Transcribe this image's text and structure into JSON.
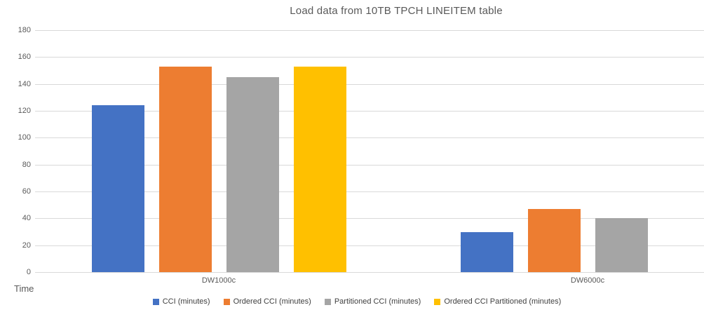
{
  "title": "Load data from 10TB TPCH LINEITEM table",
  "axis_title": "Time",
  "colors": {
    "background": "#ffffff",
    "gridline": "#d9d9d9",
    "axis_label_text": "#595959",
    "title_text": "#595959",
    "legend_text": "#404040"
  },
  "chart_data": {
    "type": "bar",
    "title": "Load data from 10TB TPCH LINEITEM table",
    "xlabel": "Time",
    "ylabel": "",
    "categories": [
      "DW1000c",
      "DW6000c"
    ],
    "series": [
      {
        "name": "CCI (minutes)",
        "color": "#4472C4",
        "values": [
          124,
          30
        ]
      },
      {
        "name": "Ordered CCI (minutes)",
        "color": "#ED7D31",
        "values": [
          153,
          47
        ]
      },
      {
        "name": "Partitioned CCI (minutes)",
        "color": "#A5A5A5",
        "values": [
          145,
          40
        ]
      },
      {
        "name": "Ordered CCI Partitioned (minutes)",
        "color": "#FFC000",
        "values": [
          153,
          null
        ]
      }
    ],
    "ylim": [
      0,
      180
    ],
    "yticks": [
      0,
      20,
      40,
      60,
      80,
      100,
      120,
      140,
      160,
      180
    ],
    "grid": true,
    "legend_position": "bottom"
  }
}
